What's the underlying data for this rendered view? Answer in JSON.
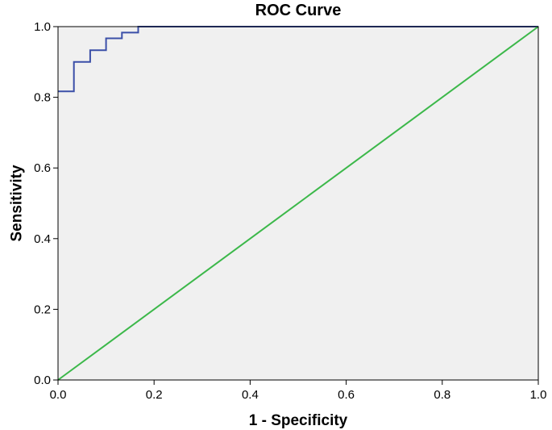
{
  "chart_data": {
    "type": "line",
    "title": "ROC Curve",
    "xlabel": "1 - Specificity",
    "ylabel": "Sensitivity",
    "xlim": [
      0,
      1
    ],
    "ylim": [
      0,
      1
    ],
    "xticks": [
      "0.0",
      "0.2",
      "0.4",
      "0.6",
      "0.8",
      "1.0"
    ],
    "yticks": [
      "0.0",
      "0.2",
      "0.4",
      "0.6",
      "0.8",
      "1.0"
    ],
    "grid": false,
    "legend": "none",
    "background_color": "#f0f0f0",
    "series": [
      {
        "style": "step",
        "color": "#3b4fa8",
        "x": [
          0,
          0.033,
          0.033,
          0.067,
          0.067,
          0.1,
          0.1,
          0.133,
          0.133,
          0.167,
          0.167,
          1.0
        ],
        "y": [
          0.817,
          0.817,
          0.9,
          0.9,
          0.933,
          0.933,
          0.967,
          0.967,
          0.983,
          0.983,
          1.0,
          1.0
        ]
      },
      {
        "style": "reference",
        "color": "#3cb84a",
        "x": [
          0,
          1
        ],
        "y": [
          0,
          1
        ]
      }
    ]
  }
}
